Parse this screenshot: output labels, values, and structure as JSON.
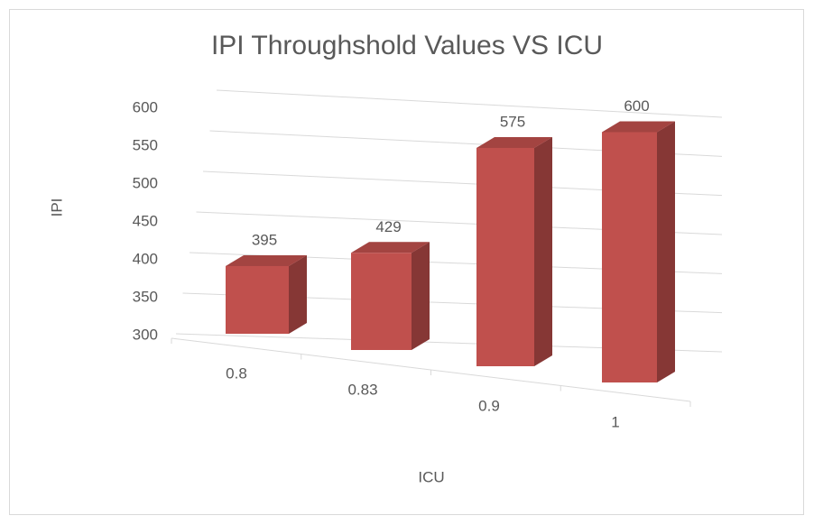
{
  "chart_data": {
    "type": "bar3d",
    "title": "IPI Throughshold Values VS ICU",
    "x_label": "ICU",
    "y_label": "IPI",
    "categories": [
      "0.8",
      "0.83",
      "0.9",
      "1"
    ],
    "values": [
      395,
      429,
      575,
      600
    ],
    "color": "#c0504d",
    "ylim": [
      300,
      600
    ],
    "yticks": [
      300,
      350,
      400,
      450,
      500,
      550,
      600
    ],
    "grid": true
  }
}
